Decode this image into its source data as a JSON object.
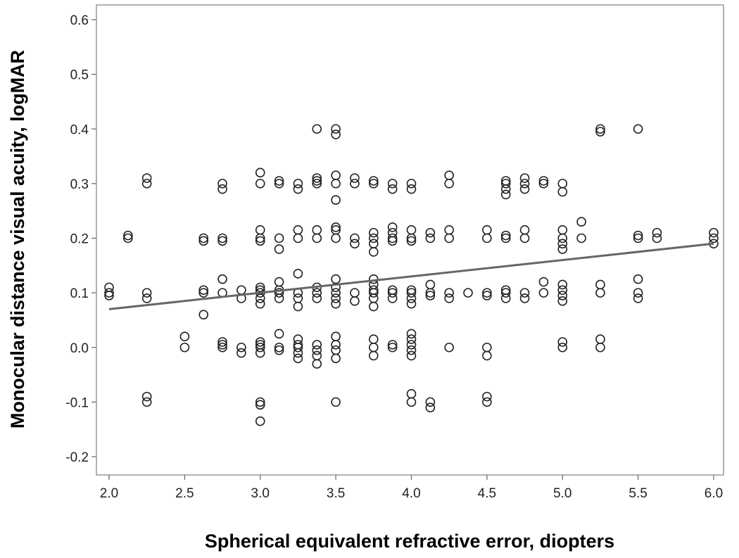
{
  "chart_data": {
    "type": "scatter",
    "title": "",
    "xlabel": "Spherical equivalent refractive error, diopters",
    "ylabel": "Monocular distance visual acuity, logMAR",
    "xlim": [
      2.0,
      6.0
    ],
    "ylim": [
      -0.2,
      0.6
    ],
    "x_ticks": [
      "2.0",
      "2.5",
      "3.0",
      "3.5",
      "4.0",
      "4.5",
      "5.0",
      "5.5",
      "6.0"
    ],
    "y_ticks": [
      "-0.2",
      "-0.1",
      "0.0",
      "0.1",
      "0.2",
      "0.3",
      "0.4",
      "0.5",
      "0.6"
    ],
    "grid": false,
    "marker": "open-circle",
    "colors": {
      "marker": "#222222",
      "trendline": "#666666",
      "frame": "#999999"
    },
    "points": [
      [
        2.0,
        0.11
      ],
      [
        2.0,
        0.1
      ],
      [
        2.0,
        0.095
      ],
      [
        2.125,
        0.205
      ],
      [
        2.125,
        0.2
      ],
      [
        2.25,
        0.31
      ],
      [
        2.25,
        0.3
      ],
      [
        2.25,
        0.1
      ],
      [
        2.25,
        0.09
      ],
      [
        2.25,
        -0.09
      ],
      [
        2.25,
        -0.1
      ],
      [
        2.5,
        0.02
      ],
      [
        2.5,
        0.0
      ],
      [
        2.625,
        0.2
      ],
      [
        2.625,
        0.195
      ],
      [
        2.625,
        0.105
      ],
      [
        2.625,
        0.1
      ],
      [
        2.625,
        0.06
      ],
      [
        2.75,
        0.3
      ],
      [
        2.75,
        0.29
      ],
      [
        2.75,
        0.2
      ],
      [
        2.75,
        0.195
      ],
      [
        2.75,
        0.125
      ],
      [
        2.75,
        0.1
      ],
      [
        2.75,
        0.01
      ],
      [
        2.75,
        0.005
      ],
      [
        2.75,
        0.0
      ],
      [
        2.875,
        0.105
      ],
      [
        2.875,
        0.09
      ],
      [
        2.875,
        0.0
      ],
      [
        2.875,
        -0.01
      ],
      [
        3.0,
        0.32
      ],
      [
        3.0,
        0.3
      ],
      [
        3.0,
        0.215
      ],
      [
        3.0,
        0.2
      ],
      [
        3.0,
        0.195
      ],
      [
        3.0,
        0.11
      ],
      [
        3.0,
        0.105
      ],
      [
        3.0,
        0.1
      ],
      [
        3.0,
        0.09
      ],
      [
        3.0,
        0.08
      ],
      [
        3.0,
        0.01
      ],
      [
        3.0,
        0.005
      ],
      [
        3.0,
        0.0
      ],
      [
        3.0,
        -0.01
      ],
      [
        3.0,
        -0.1
      ],
      [
        3.0,
        -0.105
      ],
      [
        3.0,
        -0.135
      ],
      [
        3.125,
        0.305
      ],
      [
        3.125,
        0.3
      ],
      [
        3.125,
        0.2
      ],
      [
        3.125,
        0.18
      ],
      [
        3.125,
        0.12
      ],
      [
        3.125,
        0.105
      ],
      [
        3.125,
        0.1
      ],
      [
        3.125,
        0.09
      ],
      [
        3.125,
        0.025
      ],
      [
        3.125,
        0.0
      ],
      [
        3.125,
        -0.005
      ],
      [
        3.25,
        0.3
      ],
      [
        3.25,
        0.29
      ],
      [
        3.25,
        0.215
      ],
      [
        3.25,
        0.2
      ],
      [
        3.25,
        0.135
      ],
      [
        3.25,
        0.1
      ],
      [
        3.25,
        0.09
      ],
      [
        3.25,
        0.075
      ],
      [
        3.25,
        0.015
      ],
      [
        3.25,
        0.005
      ],
      [
        3.25,
        0.0
      ],
      [
        3.25,
        -0.01
      ],
      [
        3.25,
        -0.02
      ],
      [
        3.375,
        0.4
      ],
      [
        3.375,
        0.31
      ],
      [
        3.375,
        0.305
      ],
      [
        3.375,
        0.3
      ],
      [
        3.375,
        0.215
      ],
      [
        3.375,
        0.2
      ],
      [
        3.375,
        0.11
      ],
      [
        3.375,
        0.1
      ],
      [
        3.375,
        0.09
      ],
      [
        3.375,
        0.005
      ],
      [
        3.375,
        -0.005
      ],
      [
        3.375,
        -0.015
      ],
      [
        3.375,
        -0.03
      ],
      [
        3.5,
        0.4
      ],
      [
        3.5,
        0.39
      ],
      [
        3.5,
        0.315
      ],
      [
        3.5,
        0.3
      ],
      [
        3.5,
        0.27
      ],
      [
        3.5,
        0.22
      ],
      [
        3.5,
        0.215
      ],
      [
        3.5,
        0.2
      ],
      [
        3.5,
        0.125
      ],
      [
        3.5,
        0.11
      ],
      [
        3.5,
        0.1
      ],
      [
        3.5,
        0.09
      ],
      [
        3.5,
        0.08
      ],
      [
        3.5,
        0.02
      ],
      [
        3.5,
        0.005
      ],
      [
        3.5,
        -0.005
      ],
      [
        3.5,
        -0.02
      ],
      [
        3.5,
        -0.1
      ],
      [
        3.625,
        0.31
      ],
      [
        3.625,
        0.3
      ],
      [
        3.625,
        0.2
      ],
      [
        3.625,
        0.19
      ],
      [
        3.625,
        0.1
      ],
      [
        3.625,
        0.085
      ],
      [
        3.75,
        0.305
      ],
      [
        3.75,
        0.3
      ],
      [
        3.75,
        0.21
      ],
      [
        3.75,
        0.2
      ],
      [
        3.75,
        0.19
      ],
      [
        3.75,
        0.175
      ],
      [
        3.75,
        0.125
      ],
      [
        3.75,
        0.115
      ],
      [
        3.75,
        0.105
      ],
      [
        3.75,
        0.1
      ],
      [
        3.75,
        0.09
      ],
      [
        3.75,
        0.075
      ],
      [
        3.75,
        0.015
      ],
      [
        3.75,
        0.0
      ],
      [
        3.75,
        -0.015
      ],
      [
        3.875,
        0.3
      ],
      [
        3.875,
        0.29
      ],
      [
        3.875,
        0.22
      ],
      [
        3.875,
        0.21
      ],
      [
        3.875,
        0.2
      ],
      [
        3.875,
        0.195
      ],
      [
        3.875,
        0.105
      ],
      [
        3.875,
        0.1
      ],
      [
        3.875,
        0.09
      ],
      [
        3.875,
        0.005
      ],
      [
        3.875,
        0.0
      ],
      [
        4.0,
        0.3
      ],
      [
        4.0,
        0.29
      ],
      [
        4.0,
        0.215
      ],
      [
        4.0,
        0.2
      ],
      [
        4.0,
        0.195
      ],
      [
        4.0,
        0.105
      ],
      [
        4.0,
        0.1
      ],
      [
        4.0,
        0.09
      ],
      [
        4.0,
        0.08
      ],
      [
        4.0,
        0.025
      ],
      [
        4.0,
        0.015
      ],
      [
        4.0,
        0.005
      ],
      [
        4.0,
        -0.005
      ],
      [
        4.0,
        -0.015
      ],
      [
        4.0,
        -0.085
      ],
      [
        4.0,
        -0.1
      ],
      [
        4.125,
        0.21
      ],
      [
        4.125,
        0.2
      ],
      [
        4.125,
        0.115
      ],
      [
        4.125,
        0.1
      ],
      [
        4.125,
        0.095
      ],
      [
        4.125,
        -0.1
      ],
      [
        4.125,
        -0.11
      ],
      [
        4.25,
        0.315
      ],
      [
        4.25,
        0.3
      ],
      [
        4.25,
        0.215
      ],
      [
        4.25,
        0.2
      ],
      [
        4.25,
        0.1
      ],
      [
        4.25,
        0.09
      ],
      [
        4.25,
        0.0
      ],
      [
        4.375,
        0.1
      ],
      [
        4.5,
        0.215
      ],
      [
        4.5,
        0.2
      ],
      [
        4.5,
        0.1
      ],
      [
        4.5,
        0.095
      ],
      [
        4.5,
        0.0
      ],
      [
        4.5,
        -0.015
      ],
      [
        4.5,
        -0.09
      ],
      [
        4.5,
        -0.1
      ],
      [
        4.625,
        0.305
      ],
      [
        4.625,
        0.3
      ],
      [
        4.625,
        0.29
      ],
      [
        4.625,
        0.28
      ],
      [
        4.625,
        0.205
      ],
      [
        4.625,
        0.2
      ],
      [
        4.625,
        0.105
      ],
      [
        4.625,
        0.1
      ],
      [
        4.625,
        0.09
      ],
      [
        4.75,
        0.31
      ],
      [
        4.75,
        0.3
      ],
      [
        4.75,
        0.29
      ],
      [
        4.75,
        0.215
      ],
      [
        4.75,
        0.2
      ],
      [
        4.75,
        0.1
      ],
      [
        4.75,
        0.09
      ],
      [
        4.875,
        0.305
      ],
      [
        4.875,
        0.3
      ],
      [
        4.875,
        0.12
      ],
      [
        4.875,
        0.1
      ],
      [
        5.0,
        0.3
      ],
      [
        5.0,
        0.285
      ],
      [
        5.0,
        0.215
      ],
      [
        5.0,
        0.2
      ],
      [
        5.0,
        0.19
      ],
      [
        5.0,
        0.18
      ],
      [
        5.0,
        0.115
      ],
      [
        5.0,
        0.105
      ],
      [
        5.0,
        0.095
      ],
      [
        5.0,
        0.085
      ],
      [
        5.0,
        0.01
      ],
      [
        5.0,
        0.0
      ],
      [
        5.125,
        0.23
      ],
      [
        5.125,
        0.2
      ],
      [
        5.25,
        0.4
      ],
      [
        5.25,
        0.395
      ],
      [
        5.25,
        0.115
      ],
      [
        5.25,
        0.1
      ],
      [
        5.25,
        0.015
      ],
      [
        5.25,
        0.0
      ],
      [
        5.5,
        0.4
      ],
      [
        5.5,
        0.205
      ],
      [
        5.5,
        0.2
      ],
      [
        5.5,
        0.125
      ],
      [
        5.5,
        0.1
      ],
      [
        5.5,
        0.09
      ],
      [
        5.625,
        0.21
      ],
      [
        5.625,
        0.2
      ],
      [
        6.0,
        0.21
      ],
      [
        6.0,
        0.2
      ],
      [
        6.0,
        0.19
      ]
    ],
    "trendline": {
      "x": [
        2.0,
        6.0
      ],
      "y": [
        0.07,
        0.19
      ]
    }
  }
}
